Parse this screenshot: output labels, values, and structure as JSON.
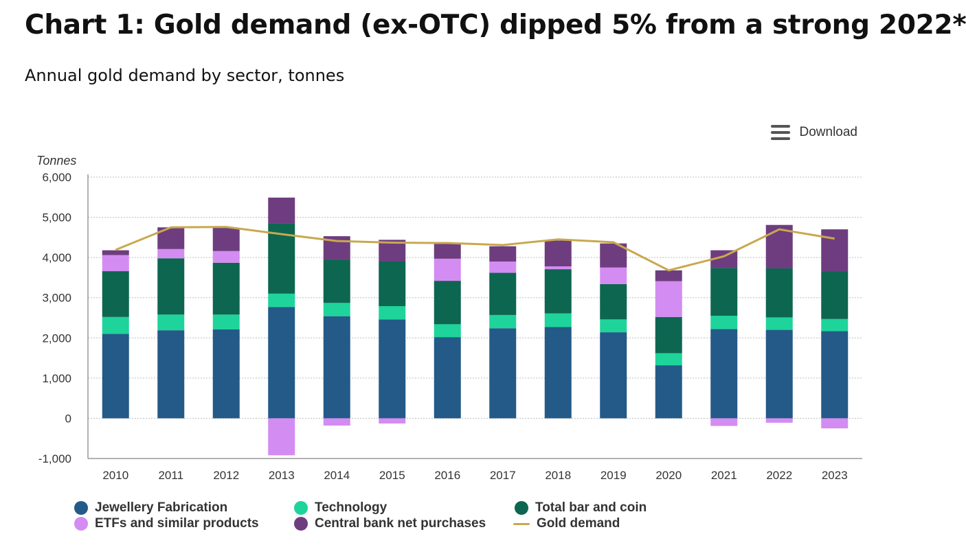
{
  "title": "Chart 1: Gold demand (ex-OTC) dipped 5% from a strong 2022*",
  "subtitle": "Annual gold demand by sector, tonnes",
  "download": {
    "label": "Download",
    "icon": "hamburger-menu-icon"
  },
  "chart_data": {
    "type": "bar",
    "stacked": true,
    "ylabel": "Tonnes",
    "ylim": [
      -1000,
      6000
    ],
    "yticks": [
      6000,
      5000,
      4000,
      3000,
      2000,
      1000,
      0,
      -1000
    ],
    "ytick_labels": [
      "6,000",
      "5,000",
      "4,000",
      "3,000",
      "2,000",
      "1,000",
      "0",
      "-1,000"
    ],
    "grid": true,
    "legend_position": "bottom",
    "categories": [
      "2010",
      "2011",
      "2012",
      "2013",
      "2014",
      "2015",
      "2016",
      "2017",
      "2018",
      "2019",
      "2020",
      "2021",
      "2022",
      "2023"
    ],
    "series": [
      {
        "name": "Jewellery Fabrication",
        "color": "#235a87",
        "values": [
          2100,
          2190,
          2210,
          2770,
          2540,
          2460,
          2020,
          2240,
          2270,
          2140,
          1320,
          2220,
          2200,
          2170
        ]
      },
      {
        "name": "Technology",
        "color": "#1ed49a",
        "values": [
          420,
          390,
          370,
          330,
          330,
          330,
          320,
          330,
          340,
          320,
          300,
          330,
          310,
          300
        ]
      },
      {
        "name": "Total bar and coin",
        "color": "#0d6650",
        "values": [
          1140,
          1400,
          1290,
          1740,
          1080,
          1110,
          1080,
          1050,
          1100,
          880,
          900,
          1190,
          1220,
          1190
        ]
      },
      {
        "name": "ETFs and similar products",
        "color": "#d38cf2",
        "values": [
          400,
          230,
          290,
          -920,
          -180,
          -130,
          550,
          280,
          70,
          410,
          890,
          -190,
          -110,
          -250
        ]
      },
      {
        "name": "Central bank net purchases",
        "color": "#6e3d7f",
        "values": [
          120,
          540,
          580,
          650,
          580,
          540,
          390,
          380,
          640,
          600,
          270,
          440,
          1080,
          1040
        ]
      }
    ],
    "line_series": {
      "name": "Gold demand",
      "color": "#c8a84f",
      "values": [
        4190,
        4750,
        4760,
        4580,
        4410,
        4370,
        4360,
        4310,
        4450,
        4380,
        3680,
        4030,
        4700,
        4470
      ]
    }
  }
}
